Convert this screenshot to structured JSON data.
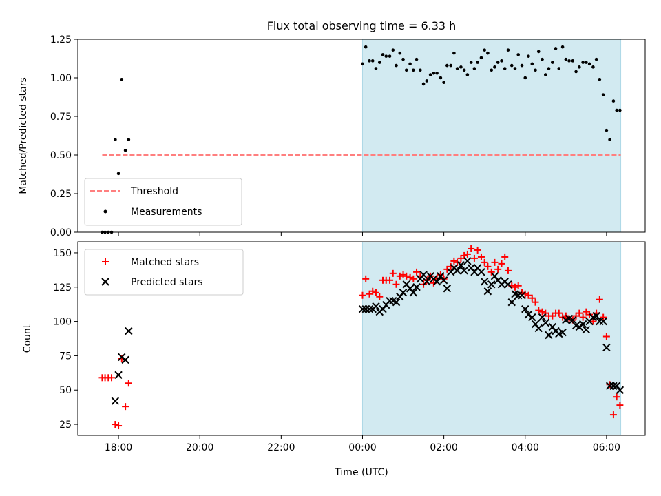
{
  "figure_title": "Flux total observing time = 6.33 h",
  "xlabel": "Time (UTC)",
  "x_ticks": [
    {
      "h": 18,
      "label": "18:00"
    },
    {
      "h": 20,
      "label": "20:00"
    },
    {
      "h": 22,
      "label": "22:00"
    },
    {
      "h": 24,
      "label": "00:00"
    },
    {
      "h": 26,
      "label": "02:00"
    },
    {
      "h": 28,
      "label": "04:00"
    },
    {
      "h": 30,
      "label": "06:00"
    }
  ],
  "colors": {
    "shade": "#add8e6",
    "threshold": "#ff7f7f",
    "matched": "#ff0000",
    "predicted": "#000000",
    "measurement": "#000000"
  },
  "chart_data": [
    {
      "type": "scatter",
      "name": "ratio-panel",
      "ylabel": "Matched/Predicted stars",
      "xlim": [
        17.0,
        30.95
      ],
      "ylim": [
        0.0,
        1.25
      ],
      "y_ticks": [
        {
          "v": 0.0,
          "label": "0.00"
        },
        {
          "v": 0.25,
          "label": "0.25"
        },
        {
          "v": 0.5,
          "label": "0.50"
        },
        {
          "v": 0.75,
          "label": "0.75"
        },
        {
          "v": 1.0,
          "label": "1.00"
        },
        {
          "v": 1.25,
          "label": "1.25"
        }
      ],
      "shaded_span": [
        24.0,
        30.35
      ],
      "threshold": {
        "y": 0.5,
        "x": [
          17.6,
          30.35
        ],
        "label": "Threshold"
      },
      "legend": [
        {
          "key": "threshold",
          "label": "Threshold"
        },
        {
          "key": "measurement",
          "label": "Measurements"
        }
      ],
      "legend_position": "lower-left",
      "measurements": {
        "label": "Measurements",
        "x": [
          17.6,
          17.67,
          17.75,
          17.83,
          17.92,
          18.0,
          18.08,
          18.17,
          18.25,
          24.0,
          24.08,
          24.17,
          24.25,
          24.33,
          24.42,
          24.5,
          24.58,
          24.67,
          24.75,
          24.83,
          24.92,
          25.0,
          25.08,
          25.17,
          25.25,
          25.33,
          25.42,
          25.5,
          25.58,
          25.67,
          25.75,
          25.83,
          25.92,
          26.0,
          26.08,
          26.17,
          26.25,
          26.33,
          26.42,
          26.5,
          26.58,
          26.67,
          26.75,
          26.83,
          26.92,
          27.0,
          27.08,
          27.17,
          27.25,
          27.33,
          27.42,
          27.5,
          27.58,
          27.67,
          27.75,
          27.83,
          27.92,
          28.0,
          28.08,
          28.17,
          28.25,
          28.33,
          28.42,
          28.5,
          28.58,
          28.67,
          28.75,
          28.83,
          28.92,
          29.0,
          29.08,
          29.17,
          29.25,
          29.33,
          29.42,
          29.5,
          29.58,
          29.67,
          29.75,
          29.83,
          29.92,
          30.0,
          30.08,
          30.17,
          30.25,
          30.33
        ],
        "y": [
          0.0,
          0.0,
          0.0,
          0.0,
          0.6,
          0.38,
          0.99,
          0.53,
          0.6,
          1.09,
          1.2,
          1.11,
          1.11,
          1.06,
          1.1,
          1.15,
          1.14,
          1.14,
          1.18,
          1.08,
          1.16,
          1.12,
          1.05,
          1.09,
          1.05,
          1.12,
          1.05,
          0.96,
          0.98,
          1.02,
          1.03,
          1.03,
          1.0,
          0.97,
          1.08,
          1.08,
          1.16,
          1.06,
          1.07,
          1.05,
          1.02,
          1.1,
          1.06,
          1.1,
          1.13,
          1.18,
          1.16,
          1.05,
          1.07,
          1.1,
          1.11,
          1.06,
          1.18,
          1.08,
          1.06,
          1.15,
          1.08,
          1.0,
          1.14,
          1.09,
          1.05,
          1.17,
          1.12,
          1.02,
          1.06,
          1.1,
          1.19,
          1.06,
          1.2,
          1.12,
          1.11,
          1.11,
          1.04,
          1.07,
          1.1,
          1.1,
          1.09,
          1.07,
          1.12,
          0.99,
          0.89,
          0.66,
          0.6,
          0.85,
          0.79,
          0.79
        ]
      }
    },
    {
      "type": "scatter",
      "name": "count-panel",
      "ylabel": "Count",
      "xlim": [
        17.0,
        30.95
      ],
      "ylim": [
        17,
        158
      ],
      "y_ticks": [
        {
          "v": 25,
          "label": "25"
        },
        {
          "v": 50,
          "label": "50"
        },
        {
          "v": 75,
          "label": "75"
        },
        {
          "v": 100,
          "label": "100"
        },
        {
          "v": 125,
          "label": "125"
        },
        {
          "v": 150,
          "label": "150"
        }
      ],
      "shaded_span": [
        24.0,
        30.35
      ],
      "legend": [
        {
          "key": "matched",
          "label": "Matched stars"
        },
        {
          "key": "predicted",
          "label": "Predicted stars"
        }
      ],
      "legend_position": "top-left",
      "series": [
        {
          "name": "Matched stars",
          "marker": "plus",
          "x": [
            17.6,
            17.67,
            17.75,
            17.83,
            17.92,
            18.0,
            18.08,
            18.17,
            18.25,
            24.0,
            24.08,
            24.17,
            24.25,
            24.33,
            24.42,
            24.5,
            24.58,
            24.67,
            24.75,
            24.83,
            24.92,
            25.0,
            25.08,
            25.17,
            25.25,
            25.33,
            25.42,
            25.5,
            25.58,
            25.67,
            25.75,
            25.83,
            25.92,
            26.0,
            26.08,
            26.17,
            26.25,
            26.33,
            26.42,
            26.5,
            26.58,
            26.67,
            26.75,
            26.83,
            26.92,
            27.0,
            27.08,
            27.17,
            27.25,
            27.33,
            27.42,
            27.5,
            27.58,
            27.67,
            27.75,
            27.83,
            27.92,
            28.0,
            28.08,
            28.17,
            28.25,
            28.33,
            28.42,
            28.5,
            28.58,
            28.67,
            28.75,
            28.83,
            28.92,
            29.0,
            29.08,
            29.17,
            29.25,
            29.33,
            29.42,
            29.5,
            29.58,
            29.67,
            29.75,
            29.83,
            29.92,
            30.0,
            30.08,
            30.17,
            30.25,
            30.33
          ],
          "y": [
            59,
            59,
            59,
            59,
            25,
            24,
            73,
            38,
            55,
            119,
            131,
            120,
            122,
            121,
            118,
            130,
            130,
            130,
            135,
            127,
            133,
            134,
            133,
            132,
            131,
            136,
            133,
            127,
            130,
            133,
            128,
            131,
            134,
            131,
            138,
            140,
            144,
            143,
            146,
            148,
            149,
            153,
            146,
            152,
            147,
            143,
            140,
            136,
            143,
            138,
            142,
            147,
            137,
            126,
            125,
            126,
            121,
            120,
            119,
            117,
            114,
            108,
            107,
            106,
            104,
            104,
            106,
            106,
            103,
            104,
            102,
            101,
            104,
            106,
            103,
            107,
            105,
            100,
            106,
            116,
            103,
            89,
            54,
            32,
            45,
            39
          ]
        },
        {
          "name": "Predicted stars",
          "marker": "x",
          "x": [
            17.92,
            18.0,
            18.08,
            18.17,
            18.25,
            24.0,
            24.08,
            24.17,
            24.25,
            24.33,
            24.42,
            24.5,
            24.58,
            24.67,
            24.75,
            24.83,
            24.92,
            25.0,
            25.08,
            25.17,
            25.25,
            25.33,
            25.42,
            25.5,
            25.58,
            25.67,
            25.75,
            25.83,
            25.92,
            26.0,
            26.08,
            26.17,
            26.25,
            26.33,
            26.42,
            26.5,
            26.58,
            26.67,
            26.75,
            26.83,
            26.92,
            27.0,
            27.08,
            27.17,
            27.25,
            27.33,
            27.42,
            27.5,
            27.58,
            27.67,
            27.75,
            27.83,
            27.92,
            28.0,
            28.08,
            28.17,
            28.25,
            28.33,
            28.42,
            28.5,
            28.58,
            28.67,
            28.75,
            28.83,
            28.92,
            29.0,
            29.08,
            29.17,
            29.25,
            29.33,
            29.42,
            29.5,
            29.58,
            29.67,
            29.75,
            29.83,
            29.92,
            30.0,
            30.08,
            30.17,
            30.25,
            30.33
          ],
          "y": [
            42,
            61,
            74,
            72,
            93,
            109,
            109,
            109,
            109,
            111,
            107,
            109,
            112,
            115,
            115,
            114,
            118,
            121,
            127,
            124,
            121,
            125,
            131,
            134,
            129,
            133,
            131,
            129,
            133,
            130,
            124,
            136,
            139,
            137,
            141,
            137,
            144,
            139,
            136,
            139,
            136,
            129,
            122,
            127,
            133,
            130,
            127,
            129,
            127,
            114,
            120,
            119,
            119,
            109,
            105,
            103,
            98,
            95,
            103,
            99,
            90,
            96,
            93,
            91,
            92,
            101,
            102,
            101,
            97,
            96,
            98,
            94,
            100,
            103,
            104,
            100,
            100,
            81,
            53,
            53,
            53,
            50
          ]
        }
      ]
    }
  ]
}
